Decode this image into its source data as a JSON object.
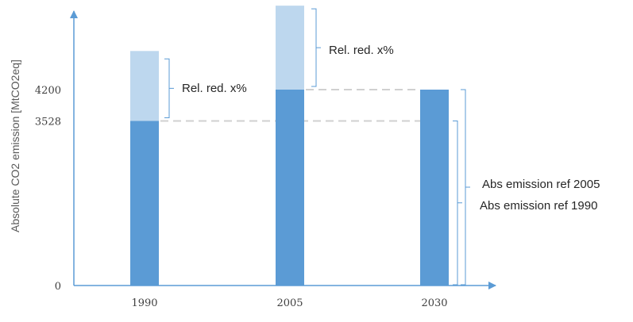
{
  "chart_data": {
    "type": "bar",
    "categories": [
      "1990",
      "2005",
      "2030"
    ],
    "series": [
      {
        "values": [
          3528,
          4200,
          4200
        ]
      },
      {
        "values": [
          1500,
          1800,
          0
        ]
      }
    ],
    "stacked": true,
    "ylabel": "Absolute CO2 emission [MtCO2eq]",
    "xlabel": "",
    "title": "",
    "ytick_labels": [
      "0",
      "3528",
      "4200"
    ],
    "ytick_values": [
      0,
      3528,
      4200
    ],
    "ylim": [
      0,
      6000
    ],
    "grid": false,
    "reference_lines": [
      {
        "value": 4200,
        "from": "2005",
        "to": "2030",
        "style": "dashed"
      },
      {
        "value": 3528,
        "from": "1990",
        "to": "2030",
        "style": "dashed"
      }
    ],
    "annotations": [
      {
        "text": "Rel. red. x%",
        "category": "1990"
      },
      {
        "text": "Rel. red. x%",
        "category": "2005"
      },
      {
        "text": "Abs emission ref 2005",
        "category": "2030"
      },
      {
        "text": "Abs emission ref 1990",
        "category": "2030"
      }
    ],
    "colors": {
      "base": "#5b9bd5",
      "reduction": "#bdd7ee",
      "axis": "#5b9bd5",
      "bracket": "#5b9bd5",
      "dash": "#d0d0d0"
    }
  }
}
